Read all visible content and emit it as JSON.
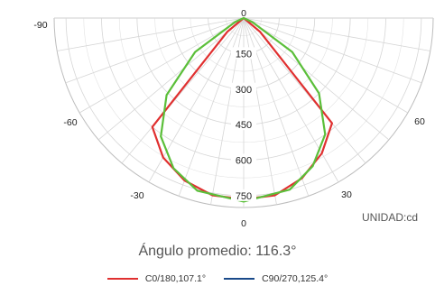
{
  "chart_data": {
    "type": "polar",
    "unit_label": "UNIDAD:cd",
    "radial_ticks": [
      150,
      300,
      450,
      600,
      750
    ],
    "angle_labels": [
      "-90",
      "-60",
      "-30",
      "0",
      "30",
      "60",
      "0"
    ],
    "angles_deg": [
      -90,
      -75,
      -60,
      -45,
      -30,
      -15,
      0,
      15,
      30,
      45,
      60,
      75,
      90
    ],
    "series": [
      {
        "name": "C0/180,107.1°",
        "color": "#e03030",
        "points": [
          [
            -50,
            90
          ],
          [
            -40,
            600
          ],
          [
            -30,
            680
          ],
          [
            -20,
            730
          ],
          [
            -10,
            760
          ],
          [
            0,
            765
          ],
          [
            10,
            760
          ],
          [
            20,
            720
          ],
          [
            30,
            660
          ],
          [
            40,
            580
          ],
          [
            50,
            90
          ]
        ]
      },
      {
        "name": "C90/270,125.4°",
        "color": "#1a4a8a",
        "points": []
      },
      {
        "name": "",
        "color": "#5bbf3a",
        "points": [
          [
            -65,
            40
          ],
          [
            -55,
            250
          ],
          [
            -45,
            460
          ],
          [
            -35,
            610
          ],
          [
            -25,
            700
          ],
          [
            -15,
            755
          ],
          [
            0,
            775
          ],
          [
            15,
            750
          ],
          [
            25,
            690
          ],
          [
            35,
            600
          ],
          [
            45,
            450
          ],
          [
            55,
            250
          ],
          [
            65,
            40
          ]
        ]
      }
    ]
  },
  "caption": "Ángulo promedio: 116.3°"
}
